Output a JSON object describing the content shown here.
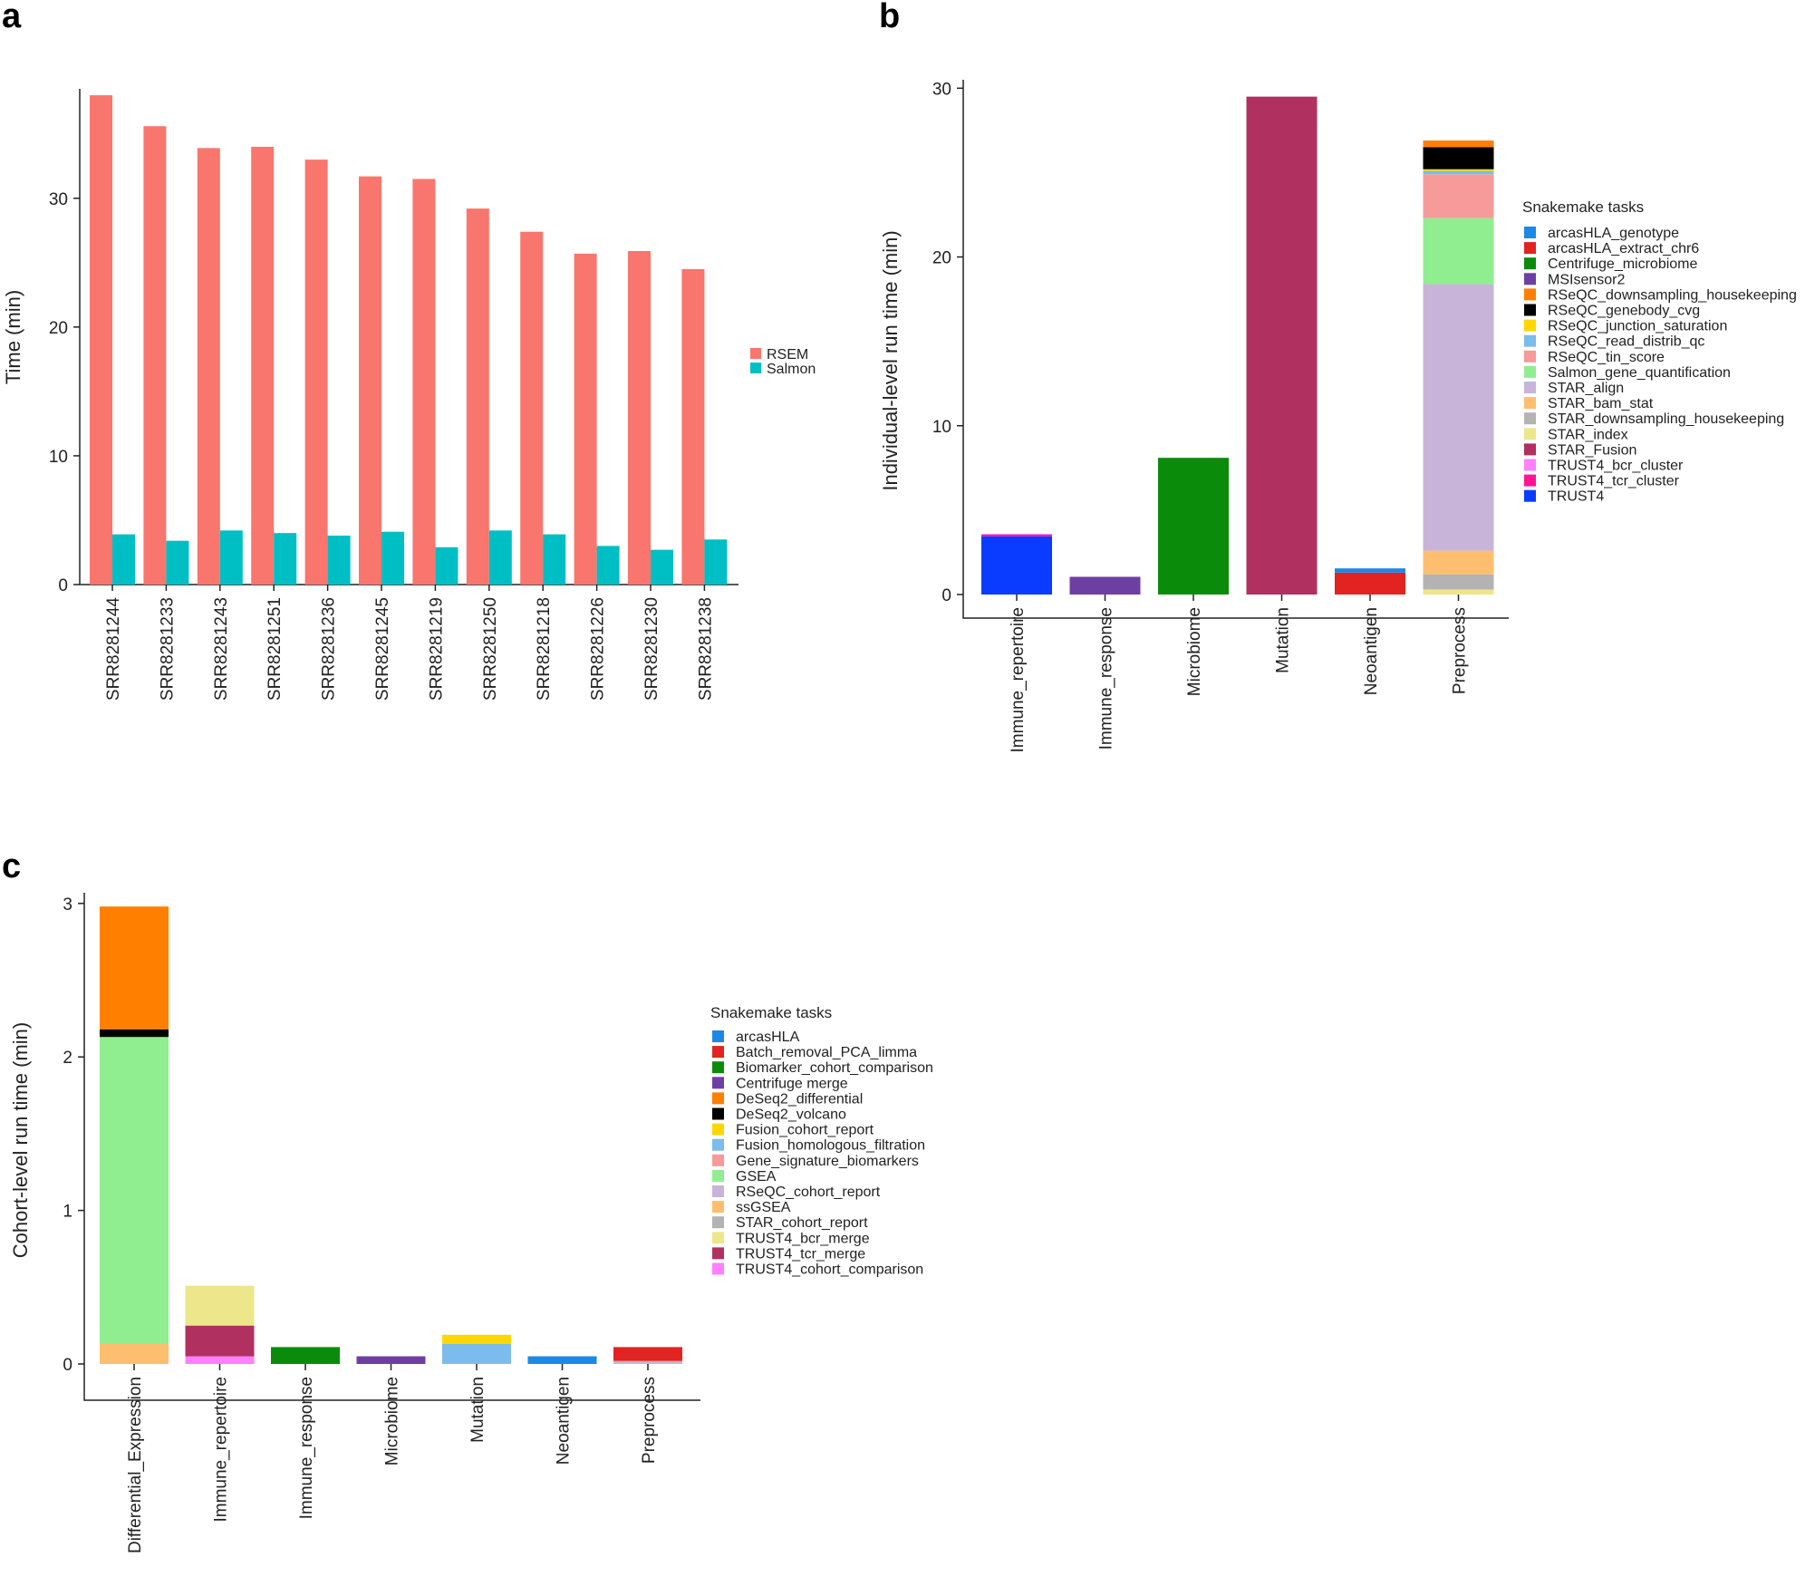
{
  "panels": {
    "a": {
      "letter": "a"
    },
    "b": {
      "letter": "b"
    },
    "c": {
      "letter": "c"
    }
  },
  "chart_data": [
    {
      "id": "a",
      "type": "bar",
      "title": "",
      "xlabel": "",
      "ylabel": "Time (min)",
      "ylim": [
        0,
        38.5
      ],
      "yticks": [
        0,
        10,
        20,
        30
      ],
      "categories": [
        "SRR8281244",
        "SRR8281233",
        "SRR8281243",
        "SRR8281251",
        "SRR8281236",
        "SRR8281245",
        "SRR8281219",
        "SRR8281250",
        "SRR8281218",
        "SRR8281226",
        "SRR8281230",
        "SRR8281238"
      ],
      "series": [
        {
          "name": "RSEM",
          "color": "#f8766d",
          "values": [
            38.0,
            35.6,
            33.9,
            34.0,
            33.0,
            31.7,
            31.5,
            29.2,
            27.4,
            25.7,
            25.9,
            24.5
          ]
        },
        {
          "name": "Salmon",
          "color": "#00bfc4",
          "values": [
            3.9,
            3.4,
            4.2,
            4.0,
            3.8,
            4.1,
            2.9,
            4.2,
            3.9,
            3.0,
            2.7,
            3.5
          ]
        }
      ],
      "legend": {
        "position": "right",
        "items": [
          "RSEM",
          "Salmon"
        ]
      }
    },
    {
      "id": "b",
      "type": "bar",
      "stacked": true,
      "title": "",
      "xlabel": "",
      "ylabel": "Individual-level run time (min)",
      "ylim": [
        0,
        30.5
      ],
      "yticks": [
        0,
        10,
        20,
        30
      ],
      "categories": [
        "Immune_repertoire",
        "Immune_response",
        "Microbiome",
        "Mutation",
        "Neoantigen",
        "Preprocess"
      ],
      "legend": {
        "title": "Snakemake tasks",
        "position": "right",
        "items": [
          {
            "name": "arcasHLA_genotype",
            "color": "#1e88e5"
          },
          {
            "name": "arcasHLA_extract_chr6",
            "color": "#e32222"
          },
          {
            "name": "Centrifuge_microbiome",
            "color": "#0a8c0a"
          },
          {
            "name": "MSIsensor2",
            "color": "#6e3fa3"
          },
          {
            "name": "RSeQC_downsampling_housekeeping",
            "color": "#ff7f00"
          },
          {
            "name": "RSeQC_genebody_cvg",
            "color": "#000000"
          },
          {
            "name": "RSeQC_junction_saturation",
            "color": "#ffd700"
          },
          {
            "name": "RSeQC_read_distrib_qc",
            "color": "#7cbcec"
          },
          {
            "name": "RSeQC_tin_score",
            "color": "#f79a9a"
          },
          {
            "name": "Salmon_gene_quantification",
            "color": "#90ee90"
          },
          {
            "name": "STAR_align",
            "color": "#c8b4d8"
          },
          {
            "name": "STAR_bam_stat",
            "color": "#fdbf6f"
          },
          {
            "name": "STAR_downsampling_housekeeping",
            "color": "#b3b3b3"
          },
          {
            "name": "STAR_index",
            "color": "#ede68a"
          },
          {
            "name": "STAR_Fusion",
            "color": "#b03060"
          },
          {
            "name": "TRUST4_bcr_cluster",
            "color": "#ff80ff"
          },
          {
            "name": "TRUST4_tcr_cluster",
            "color": "#ff1493"
          },
          {
            "name": "TRUST4",
            "color": "#0a3cff"
          }
        ]
      },
      "stacks": [
        {
          "category": "Immune_repertoire",
          "segments": [
            {
              "task": "TRUST4",
              "value": 3.45
            },
            {
              "task": "TRUST4_tcr_cluster",
              "value": 0.1
            },
            {
              "task": "TRUST4_bcr_cluster",
              "value": 0.05
            }
          ]
        },
        {
          "category": "Immune_response",
          "segments": [
            {
              "task": "MSIsensor2",
              "value": 1.05
            }
          ]
        },
        {
          "category": "Microbiome",
          "segments": [
            {
              "task": "Centrifuge_microbiome",
              "value": 8.1
            }
          ]
        },
        {
          "category": "Mutation",
          "segments": [
            {
              "task": "STAR_Fusion",
              "value": 29.5
            }
          ]
        },
        {
          "category": "Neoantigen",
          "segments": [
            {
              "task": "arcasHLA_extract_chr6",
              "value": 1.3
            },
            {
              "task": "arcasHLA_genotype",
              "value": 0.25
            }
          ]
        },
        {
          "category": "Preprocess",
          "segments": [
            {
              "task": "STAR_index",
              "value": 0.3
            },
            {
              "task": "STAR_downsampling_housekeeping",
              "value": 0.9
            },
            {
              "task": "STAR_bam_stat",
              "value": 1.4
            },
            {
              "task": "STAR_align",
              "value": 15.8
            },
            {
              "task": "Salmon_gene_quantification",
              "value": 3.9
            },
            {
              "task": "RSeQC_tin_score",
              "value": 2.6
            },
            {
              "task": "RSeQC_read_distrib_qc",
              "value": 0.2
            },
            {
              "task": "RSeQC_junction_saturation",
              "value": 0.1
            },
            {
              "task": "RSeQC_genebody_cvg",
              "value": 1.3
            },
            {
              "task": "RSeQC_downsampling_housekeeping",
              "value": 0.4
            }
          ]
        }
      ]
    },
    {
      "id": "c",
      "type": "bar",
      "stacked": true,
      "title": "",
      "xlabel": "",
      "ylabel": "Cohort-level run time (min)",
      "ylim": [
        0,
        3.07
      ],
      "yticks": [
        0,
        1,
        2,
        3
      ],
      "categories": [
        "Differential_Expression",
        "Immune_repertoire",
        "Immune_response",
        "Microbiome",
        "Mutation",
        "Neoantigen",
        "Preprocess"
      ],
      "legend": {
        "title": "Snakemake tasks",
        "position": "right",
        "items": [
          {
            "name": "arcasHLA",
            "color": "#1e88e5"
          },
          {
            "name": "Batch_removal_PCA_limma",
            "color": "#e32222"
          },
          {
            "name": "Biomarker_cohort_comparison",
            "color": "#0a8c0a"
          },
          {
            "name": "Centrifuge merge",
            "color": "#6e3fa3"
          },
          {
            "name": "DeSeq2_differential",
            "color": "#ff7f00"
          },
          {
            "name": "DeSeq2_volcano",
            "color": "#000000"
          },
          {
            "name": "Fusion_cohort_report",
            "color": "#ffd700"
          },
          {
            "name": "Fusion_homologous_filtration",
            "color": "#7cbcec"
          },
          {
            "name": "Gene_signature_biomarkers",
            "color": "#f79a9a"
          },
          {
            "name": "GSEA",
            "color": "#90ee90"
          },
          {
            "name": "RSeQC_cohort_report",
            "color": "#c8b4d8"
          },
          {
            "name": "ssGSEA",
            "color": "#fdbf6f"
          },
          {
            "name": "STAR_cohort_report",
            "color": "#b3b3b3"
          },
          {
            "name": "TRUST4_bcr_merge",
            "color": "#ede68a"
          },
          {
            "name": "TRUST4_tcr_merge",
            "color": "#b03060"
          },
          {
            "name": "TRUST4_cohort_comparison",
            "color": "#ff80ff"
          }
        ]
      },
      "stacks": [
        {
          "category": "Differential_Expression",
          "segments": [
            {
              "task": "ssGSEA",
              "value": 0.13
            },
            {
              "task": "GSEA",
              "value": 2.0
            },
            {
              "task": "DeSeq2_volcano",
              "value": 0.05
            },
            {
              "task": "DeSeq2_differential",
              "value": 0.8
            }
          ]
        },
        {
          "category": "Immune_repertoire",
          "segments": [
            {
              "task": "TRUST4_cohort_comparison",
              "value": 0.05
            },
            {
              "task": "TRUST4_tcr_merge",
              "value": 0.2
            },
            {
              "task": "TRUST4_bcr_merge",
              "value": 0.26
            }
          ]
        },
        {
          "category": "Immune_response",
          "segments": [
            {
              "task": "Biomarker_cohort_comparison",
              "value": 0.11
            }
          ]
        },
        {
          "category": "Microbiome",
          "segments": [
            {
              "task": "Centrifuge merge",
              "value": 0.05
            }
          ]
        },
        {
          "category": "Mutation",
          "segments": [
            {
              "task": "Fusion_homologous_filtration",
              "value": 0.13
            },
            {
              "task": "Fusion_cohort_report",
              "value": 0.06
            }
          ]
        },
        {
          "category": "Neoantigen",
          "segments": [
            {
              "task": "arcasHLA",
              "value": 0.05
            }
          ]
        },
        {
          "category": "Preprocess",
          "segments": [
            {
              "task": "RSeQC_cohort_report",
              "value": 0.01
            },
            {
              "task": "STAR_cohort_report",
              "value": 0.01
            },
            {
              "task": "Batch_removal_PCA_limma",
              "value": 0.09
            }
          ]
        }
      ]
    }
  ]
}
